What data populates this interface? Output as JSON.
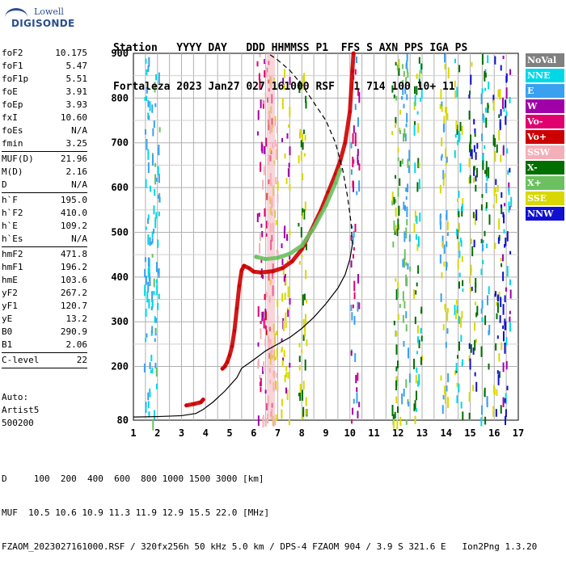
{
  "logo": {
    "line1": "Lowell",
    "line2": "DIGISONDE"
  },
  "header": {
    "line1": "Station   YYYY DAY   DDD HHMMSS P1  FFS S AXN PPS IGA PS",
    "line2": "Fortaleza 2023 Jan27 027 161000 RSF   1 714 100 10+ 11"
  },
  "params": [
    {
      "group": [
        {
          "k": "foF2",
          "v": "10.175"
        },
        {
          "k": "foF1",
          "v": "5.47"
        },
        {
          "k": "foF1p",
          "v": "5.51"
        },
        {
          "k": "foE",
          "v": "3.91"
        },
        {
          "k": "foEp",
          "v": "3.93"
        },
        {
          "k": "fxI",
          "v": "10.60"
        },
        {
          "k": "foEs",
          "v": "N/A"
        },
        {
          "k": "fmin",
          "v": "3.25"
        }
      ]
    },
    {
      "group": [
        {
          "k": "MUF(D)",
          "v": "21.96"
        },
        {
          "k": "M(D)",
          "v": "2.16"
        },
        {
          "k": "D",
          "v": "N/A"
        }
      ]
    },
    {
      "group": [
        {
          "k": "h`F",
          "v": "195.0"
        },
        {
          "k": "h`F2",
          "v": "410.0"
        },
        {
          "k": "h`E",
          "v": "109.2"
        },
        {
          "k": "h`Es",
          "v": "N/A"
        }
      ]
    },
    {
      "group": [
        {
          "k": "hmF2",
          "v": "471.8"
        },
        {
          "k": "hmF1",
          "v": "196.2"
        },
        {
          "k": "hmE",
          "v": "103.6"
        },
        {
          "k": "yF2",
          "v": "267.2"
        },
        {
          "k": "yF1",
          "v": "120.7"
        },
        {
          "k": "yE",
          "v": "13.2"
        },
        {
          "k": "B0",
          "v": "290.9"
        },
        {
          "k": "B1",
          "v": "2.06"
        }
      ]
    },
    {
      "group": [
        {
          "k": "C-level",
          "v": "22"
        }
      ]
    }
  ],
  "autoscale": {
    "label": "Auto:",
    "name": "Artist5",
    "version": "500200"
  },
  "legend": [
    {
      "label": "NoVal",
      "bg": "#808080",
      "fg": "#ffffff"
    },
    {
      "label": "NNE",
      "bg": "#00d8e8",
      "fg": "#ffffff"
    },
    {
      "label": "E",
      "bg": "#3aa0f0",
      "fg": "#ffffff"
    },
    {
      "label": "W",
      "bg": "#a000a8",
      "fg": "#ffffff"
    },
    {
      "label": "Vo-",
      "bg": "#e0006e",
      "fg": "#ffffff"
    },
    {
      "label": "Vo+",
      "bg": "#cc0000",
      "fg": "#ffffff"
    },
    {
      "label": "SSW",
      "bg": "#f4b0b8",
      "fg": "#ffffff"
    },
    {
      "label": "X-",
      "bg": "#006f00",
      "fg": "#ffffff"
    },
    {
      "label": "X+",
      "bg": "#6cc060",
      "fg": "#ffffff"
    },
    {
      "label": "SSE",
      "bg": "#d8d800",
      "fg": "#ffffff"
    },
    {
      "label": "NNW",
      "bg": "#1010d0",
      "fg": "#ffffff"
    }
  ],
  "footer": {
    "line1": "D     100  200  400  600  800 1000 1500 3000 [km]",
    "line2": "MUF  10.5 10.6 10.9 11.3 11.9 12.9 15.5 22.0 [MHz]",
    "line3": "FZAOM_2023027161000.RSF / 320fx256h 50 kHz 5.0 km / DPS-4 FZAOM 904 / 3.9 S 321.6 E   Ion2Png 1.3.20"
  },
  "chart_data": {
    "type": "scatter",
    "title": "",
    "xlabel": "",
    "ylabel": "",
    "xlim": [
      1,
      17
    ],
    "ylim": [
      80,
      900
    ],
    "x_ticks": [
      1,
      2,
      3,
      4,
      5,
      6,
      7,
      8,
      9,
      10,
      11,
      12,
      13,
      14,
      15,
      16,
      17
    ],
    "y_ticks": [
      200,
      300,
      400,
      500,
      600,
      700,
      800,
      900
    ],
    "y_tick_labels_extra": [
      80
    ],
    "grid": true,
    "vertical_gridlines_per_mhz": 2,
    "traces": [
      {
        "name": "O-trace E/F1 (Vo+)",
        "color": "#cc0000",
        "points": [
          [
            3.2,
            113
          ],
          [
            3.5,
            116
          ],
          [
            3.8,
            120
          ],
          [
            3.9,
            126
          ]
        ]
      },
      {
        "name": "O-trace F1",
        "color": "#cc0000",
        "points": [
          [
            4.7,
            195
          ],
          [
            4.8,
            200
          ],
          [
            4.9,
            210
          ],
          [
            5.0,
            225
          ],
          [
            5.1,
            245
          ],
          [
            5.2,
            280
          ],
          [
            5.3,
            330
          ],
          [
            5.4,
            380
          ],
          [
            5.5,
            415
          ],
          [
            5.6,
            425
          ]
        ]
      },
      {
        "name": "O-trace F2",
        "color": "#cc0000",
        "points": [
          [
            5.6,
            425
          ],
          [
            5.8,
            420
          ],
          [
            6.0,
            412
          ],
          [
            6.3,
            410
          ],
          [
            6.8,
            413
          ],
          [
            7.2,
            420
          ],
          [
            7.6,
            435
          ],
          [
            8.0,
            462
          ],
          [
            8.4,
            505
          ],
          [
            8.8,
            550
          ],
          [
            9.1,
            590
          ],
          [
            9.4,
            630
          ],
          [
            9.6,
            660
          ],
          [
            9.8,
            700
          ],
          [
            10.0,
            770
          ],
          [
            10.1,
            860
          ],
          [
            10.15,
            900
          ]
        ]
      },
      {
        "name": "X-trace F2",
        "color": "#6cc060",
        "points": [
          [
            6.1,
            445
          ],
          [
            6.5,
            440
          ],
          [
            7.0,
            443
          ],
          [
            7.5,
            452
          ],
          [
            8.0,
            470
          ],
          [
            8.5,
            510
          ],
          [
            9.0,
            560
          ],
          [
            9.4,
            610
          ],
          [
            9.6,
            640
          ]
        ]
      }
    ],
    "profile_solid": {
      "name": "true height profile",
      "color": "#000000",
      "points": [
        [
          1.0,
          87
        ],
        [
          2.0,
          88
        ],
        [
          3.0,
          90
        ],
        [
          3.6,
          95
        ],
        [
          3.9,
          104
        ],
        [
          4.3,
          120
        ],
        [
          4.8,
          145
        ],
        [
          5.3,
          175
        ],
        [
          5.5,
          196
        ],
        [
          6.0,
          215
        ],
        [
          6.5,
          235
        ],
        [
          7.0,
          250
        ],
        [
          7.5,
          265
        ],
        [
          8.0,
          285
        ],
        [
          8.5,
          310
        ],
        [
          9.0,
          340
        ],
        [
          9.5,
          375
        ],
        [
          9.8,
          405
        ],
        [
          10.0,
          440
        ],
        [
          10.1,
          472
        ]
      ]
    },
    "profile_dashed": {
      "name": "topside profile",
      "color": "#000000",
      "points": [
        [
          10.1,
          472
        ],
        [
          10.05,
          520
        ],
        [
          9.9,
          580
        ],
        [
          9.7,
          640
        ],
        [
          9.4,
          700
        ],
        [
          9.0,
          750
        ],
        [
          8.5,
          790
        ],
        [
          8.0,
          830
        ],
        [
          7.5,
          862
        ],
        [
          7.0,
          885
        ],
        [
          6.6,
          900
        ]
      ]
    }
  }
}
